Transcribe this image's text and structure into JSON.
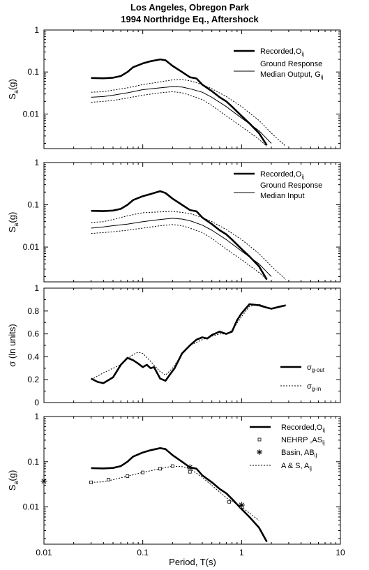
{
  "figure": {
    "title_line1": "Los Angeles, Obregon Park",
    "title_line2": "1994 Northridge Eq., Aftershock",
    "xlabel": "Period, T(s)",
    "x_ticks": [
      "0.01",
      "0.1",
      "1",
      "10"
    ]
  },
  "chart_data": [
    {
      "type": "line",
      "panel": 1,
      "xscale": "log",
      "yscale": "log",
      "xlim": [
        0.01,
        10
      ],
      "ylim": [
        0.0015,
        1
      ],
      "ylabel": "S",
      "ylabel_sub": "a",
      "ylabel_suffix": "(g)",
      "y_ticks": [
        "1",
        "0.1",
        "0.01"
      ],
      "legend_position": "top-right",
      "legend": [
        {
          "label": "Recorded,O",
          "sub": "ij",
          "style": "thick"
        },
        {
          "label": "Ground Response",
          "label2": "Median Output, G",
          "sub": "ij",
          "style": "thin"
        }
      ],
      "series": [
        {
          "style": "thick",
          "x": [
            0.03,
            0.04,
            0.05,
            0.06,
            0.07,
            0.08,
            0.1,
            0.12,
            0.15,
            0.17,
            0.2,
            0.25,
            0.3,
            0.35,
            0.4,
            0.5,
            0.6,
            0.7,
            0.8,
            1.0,
            1.2,
            1.5,
            1.8
          ],
          "y": [
            0.072,
            0.071,
            0.073,
            0.08,
            0.1,
            0.13,
            0.16,
            0.18,
            0.2,
            0.19,
            0.14,
            0.1,
            0.075,
            0.07,
            0.05,
            0.035,
            0.025,
            0.02,
            0.015,
            0.009,
            0.006,
            0.0035,
            0.0018
          ]
        },
        {
          "style": "thin",
          "x": [
            0.03,
            0.04,
            0.05,
            0.07,
            0.1,
            0.15,
            0.2,
            0.25,
            0.3,
            0.4,
            0.5,
            0.7,
            1.0,
            1.5,
            2.0
          ],
          "y": [
            0.025,
            0.026,
            0.028,
            0.032,
            0.038,
            0.042,
            0.045,
            0.044,
            0.04,
            0.033,
            0.025,
            0.015,
            0.008,
            0.004,
            0.002
          ]
        },
        {
          "style": "dotted",
          "x": [
            0.03,
            0.04,
            0.05,
            0.07,
            0.1,
            0.15,
            0.2,
            0.25,
            0.3,
            0.4,
            0.5,
            0.7,
            1.0,
            1.5,
            2.0,
            2.8
          ],
          "y": [
            0.033,
            0.034,
            0.037,
            0.042,
            0.05,
            0.058,
            0.065,
            0.066,
            0.062,
            0.05,
            0.04,
            0.026,
            0.015,
            0.007,
            0.0035,
            0.0017
          ]
        },
        {
          "style": "dotted",
          "x": [
            0.03,
            0.04,
            0.05,
            0.07,
            0.1,
            0.15,
            0.2,
            0.25,
            0.3,
            0.4,
            0.5,
            0.7,
            1.0,
            1.5,
            1.8
          ],
          "y": [
            0.019,
            0.02,
            0.021,
            0.024,
            0.028,
            0.032,
            0.034,
            0.032,
            0.028,
            0.022,
            0.016,
            0.009,
            0.005,
            0.0025,
            0.0017
          ]
        }
      ]
    },
    {
      "type": "line",
      "panel": 2,
      "xscale": "log",
      "yscale": "log",
      "xlim": [
        0.01,
        10
      ],
      "ylim": [
        0.0015,
        1
      ],
      "ylabel": "S",
      "ylabel_sub": "a",
      "ylabel_suffix": "(g)",
      "y_ticks": [
        "1",
        "0.1",
        "0.01"
      ],
      "legend_position": "top-right",
      "legend": [
        {
          "label": "Recorded,O",
          "sub": "ij",
          "style": "thick"
        },
        {
          "label": "Ground Response",
          "label2": "Median Input",
          "sub": "",
          "style": "thin"
        }
      ],
      "series": [
        {
          "style": "thick",
          "x": [
            0.03,
            0.04,
            0.05,
            0.06,
            0.07,
            0.08,
            0.1,
            0.12,
            0.15,
            0.17,
            0.2,
            0.25,
            0.3,
            0.35,
            0.4,
            0.5,
            0.6,
            0.7,
            0.8,
            1.0,
            1.2,
            1.5,
            1.8
          ],
          "y": [
            0.072,
            0.071,
            0.073,
            0.08,
            0.1,
            0.13,
            0.16,
            0.18,
            0.21,
            0.19,
            0.14,
            0.1,
            0.075,
            0.07,
            0.05,
            0.035,
            0.025,
            0.02,
            0.015,
            0.009,
            0.006,
            0.0035,
            0.0017
          ]
        },
        {
          "style": "thin",
          "x": [
            0.03,
            0.04,
            0.05,
            0.07,
            0.1,
            0.15,
            0.2,
            0.25,
            0.3,
            0.4,
            0.5,
            0.7,
            1.0,
            1.5,
            2.0
          ],
          "y": [
            0.028,
            0.03,
            0.032,
            0.035,
            0.04,
            0.045,
            0.048,
            0.046,
            0.042,
            0.033,
            0.025,
            0.015,
            0.008,
            0.004,
            0.002
          ]
        },
        {
          "style": "dotted",
          "x": [
            0.03,
            0.04,
            0.05,
            0.07,
            0.1,
            0.15,
            0.2,
            0.25,
            0.3,
            0.4,
            0.5,
            0.7,
            1.0,
            1.5,
            2.0,
            2.8
          ],
          "y": [
            0.038,
            0.04,
            0.045,
            0.055,
            0.065,
            0.068,
            0.07,
            0.066,
            0.062,
            0.05,
            0.04,
            0.026,
            0.015,
            0.007,
            0.0035,
            0.0017
          ]
        },
        {
          "style": "dotted",
          "x": [
            0.03,
            0.04,
            0.05,
            0.07,
            0.1,
            0.15,
            0.2,
            0.25,
            0.3,
            0.4,
            0.5,
            0.7,
            1.0,
            1.5,
            1.8
          ],
          "y": [
            0.021,
            0.022,
            0.023,
            0.025,
            0.028,
            0.032,
            0.034,
            0.032,
            0.028,
            0.022,
            0.016,
            0.009,
            0.005,
            0.0025,
            0.0017
          ]
        }
      ]
    },
    {
      "type": "line",
      "panel": 3,
      "xscale": "log",
      "yscale": "linear",
      "xlim": [
        0.01,
        10
      ],
      "ylim": [
        0,
        1
      ],
      "ylabel": "σ (ln units)",
      "y_ticks": [
        "0",
        "0.2",
        "0.4",
        "0.6",
        "0.8",
        "1"
      ],
      "legend_position": "bottom-right",
      "legend": [
        {
          "label": "σ",
          "sub": "g-out",
          "style": "thick"
        },
        {
          "label": "σ",
          "sub": "g-in",
          "style": "dotted"
        }
      ],
      "series": [
        {
          "style": "thick",
          "x": [
            0.03,
            0.035,
            0.04,
            0.05,
            0.06,
            0.07,
            0.08,
            0.09,
            0.1,
            0.11,
            0.12,
            0.13,
            0.15,
            0.17,
            0.19,
            0.21,
            0.25,
            0.3,
            0.35,
            0.4,
            0.45,
            0.5,
            0.6,
            0.7,
            0.8,
            0.9,
            1.0,
            1.2,
            1.5,
            1.8,
            2.0,
            2.5,
            2.8
          ],
          "y": [
            0.21,
            0.18,
            0.17,
            0.22,
            0.33,
            0.39,
            0.37,
            0.34,
            0.31,
            0.33,
            0.3,
            0.31,
            0.21,
            0.19,
            0.25,
            0.3,
            0.43,
            0.5,
            0.55,
            0.57,
            0.56,
            0.59,
            0.62,
            0.6,
            0.62,
            0.72,
            0.78,
            0.86,
            0.85,
            0.83,
            0.82,
            0.84,
            0.85
          ]
        },
        {
          "style": "dotted",
          "x": [
            0.03,
            0.04,
            0.05,
            0.06,
            0.07,
            0.08,
            0.09,
            0.1,
            0.12,
            0.15,
            0.17,
            0.2,
            0.25,
            0.3,
            0.4,
            0.5,
            0.6,
            0.7,
            0.8,
            1.0,
            1.2,
            1.5,
            2.0,
            2.5,
            2.8
          ],
          "y": [
            0.2,
            0.26,
            0.3,
            0.33,
            0.38,
            0.42,
            0.44,
            0.43,
            0.36,
            0.27,
            0.24,
            0.3,
            0.42,
            0.5,
            0.55,
            0.58,
            0.6,
            0.6,
            0.63,
            0.75,
            0.84,
            0.86,
            0.82,
            0.84,
            0.85
          ]
        }
      ]
    },
    {
      "type": "line",
      "panel": 4,
      "xscale": "log",
      "yscale": "log",
      "xlim": [
        0.01,
        10
      ],
      "ylim": [
        0.0015,
        1
      ],
      "ylabel": "S",
      "ylabel_sub": "a",
      "ylabel_suffix": "(g)",
      "y_ticks": [
        "1",
        "0.1",
        "0.01"
      ],
      "legend_position": "top-right",
      "legend": [
        {
          "label": "Recorded,O",
          "sub": "ij",
          "style": "thick"
        },
        {
          "label": "NEHRP ,AS",
          "sub": "ij",
          "style": "square"
        },
        {
          "label": "Basin, AB",
          "sub": "ij",
          "style": "star"
        },
        {
          "label": "A & S, A",
          "sub": "ij",
          "style": "dotted"
        }
      ],
      "series": [
        {
          "style": "thick",
          "x": [
            0.03,
            0.04,
            0.05,
            0.06,
            0.07,
            0.08,
            0.1,
            0.12,
            0.15,
            0.17,
            0.2,
            0.25,
            0.3,
            0.35,
            0.4,
            0.5,
            0.6,
            0.7,
            0.8,
            1.0,
            1.2,
            1.5,
            1.8
          ],
          "y": [
            0.072,
            0.071,
            0.073,
            0.08,
            0.1,
            0.13,
            0.16,
            0.18,
            0.2,
            0.19,
            0.14,
            0.1,
            0.075,
            0.07,
            0.05,
            0.035,
            0.025,
            0.02,
            0.015,
            0.009,
            0.006,
            0.0035,
            0.0017
          ]
        },
        {
          "style": "dotted",
          "x": [
            0.03,
            0.04,
            0.05,
            0.07,
            0.1,
            0.15,
            0.2,
            0.25,
            0.3,
            0.4,
            0.5,
            0.7,
            1.0,
            1.5
          ],
          "y": [
            0.035,
            0.036,
            0.04,
            0.048,
            0.058,
            0.07,
            0.08,
            0.078,
            0.07,
            0.045,
            0.03,
            0.016,
            0.01,
            0.005
          ]
        },
        {
          "style": "square",
          "x": [
            0.03,
            0.045,
            0.07,
            0.1,
            0.15,
            0.2,
            0.3,
            0.75,
            1.0
          ],
          "y": [
            0.035,
            0.04,
            0.048,
            0.058,
            0.07,
            0.08,
            0.06,
            0.013,
            0.01
          ]
        },
        {
          "style": "star",
          "x": [
            0.01,
            0.3,
            1.0
          ],
          "y": [
            0.037,
            0.075,
            0.011
          ]
        }
      ]
    }
  ]
}
